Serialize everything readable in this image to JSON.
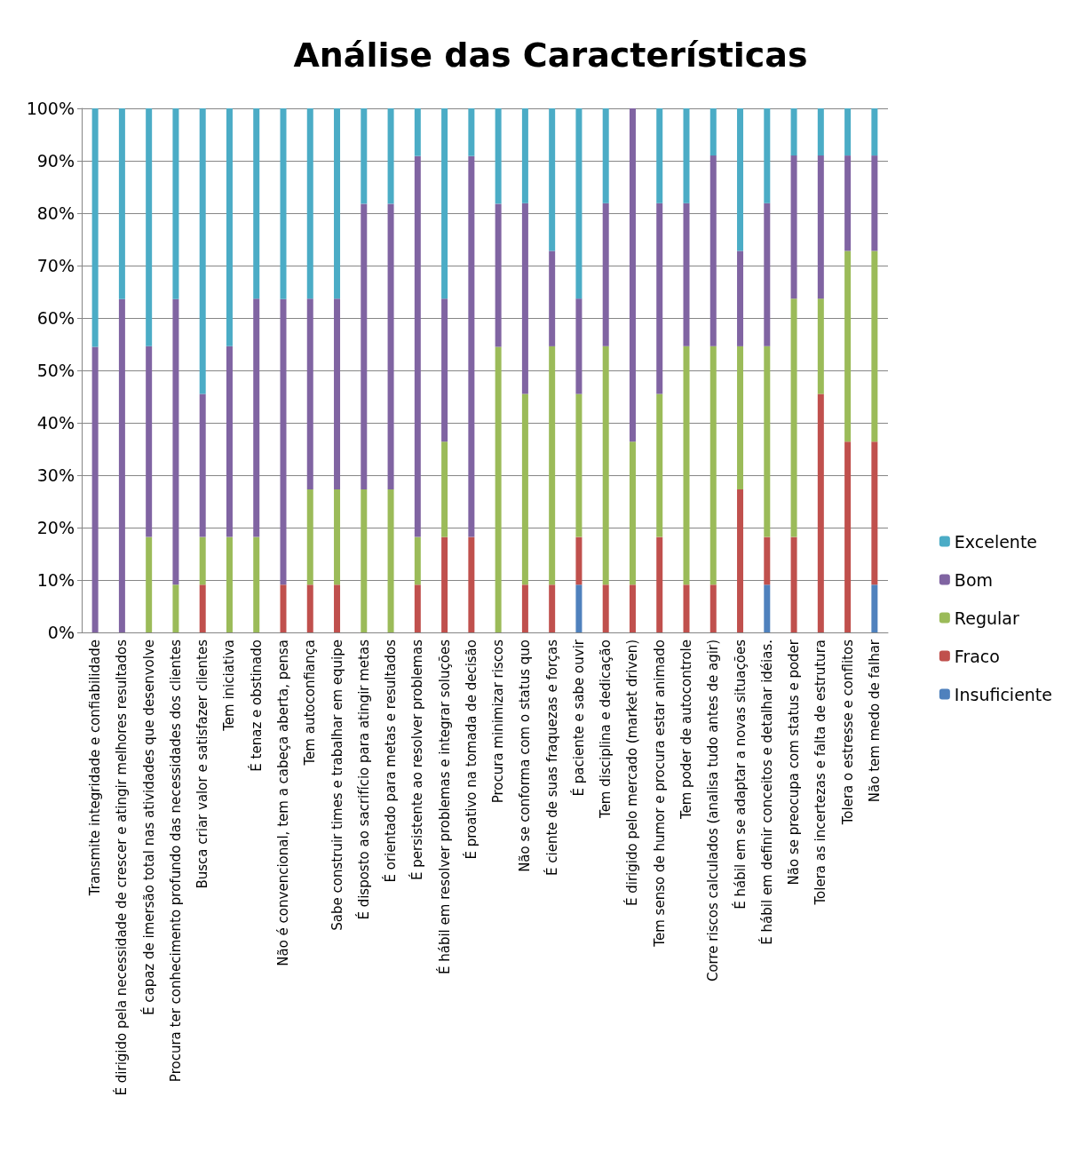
{
  "chart_data": {
    "type": "bar",
    "title": "Análise das Características",
    "stacked": true,
    "grid": "y",
    "legend": "right",
    "categories": [
      "Transmite integridade e confiabilidade",
      "É dirigido pela necessidade de crescer e atingir melhores resultados",
      "É capaz de imersão total nas atividades que desenvolve",
      "Procura ter conhecimento profundo das necessidades dos clientes",
      "Busca criar valor e satisfazer clientes",
      "Tem iniciativa",
      "É tenaz e obstinado",
      "Não é convencional, tem a cabeça aberta, pensa",
      "Tem autoconfiança",
      "Sabe construir times e trabalhar em equipe",
      "É disposto ao sacrifício para atingir metas",
      "É orientado para metas e resultados",
      "É persistente ao resolver problemas",
      "É hábil em resolver problemas e integrar soluções",
      "É proativo na tomada de decisão",
      "Procura minimizar riscos",
      "Não se conforma com o status quo",
      "É ciente de suas fraquezas e forças",
      "É paciente e sabe ouvir",
      "Tem disciplina e dedicação",
      "É dirigido pelo mercado (market driven)",
      "Tem senso de humor e procura estar animado",
      "Tem poder de autocontrole",
      "Corre riscos calculados (analisa tudo antes de agir)",
      "É hábil em se adaptar a novas situações",
      "É hábil em definir conceitos e detalhar idéias.",
      "Não se preocupa com status e poder",
      "Tolera as incertezas e falta de estrutura",
      "Tolera o estresse e conflitos",
      "Não tem medo de falhar"
    ],
    "series": [
      {
        "name": "Insuficiente",
        "color": "#4f81bd",
        "values": [
          0,
          0,
          0,
          0,
          0,
          0,
          0,
          0,
          0,
          0,
          0,
          0,
          0,
          0,
          0,
          0,
          0,
          0,
          9.1,
          0,
          0,
          0,
          0,
          0,
          0,
          9.1,
          0,
          0,
          0,
          9.1
        ]
      },
      {
        "name": "Fraco",
        "color": "#c0504d",
        "values": [
          0,
          0,
          0,
          0,
          9.1,
          0,
          0,
          9.1,
          9.1,
          9.1,
          0,
          0,
          9.1,
          18.2,
          18.2,
          0,
          9.1,
          9.1,
          9.1,
          9.1,
          9.1,
          18.2,
          9.1,
          9.1,
          27.3,
          9.1,
          18.2,
          45.5,
          36.4,
          27.3
        ]
      },
      {
        "name": "Regular",
        "color": "#9bbb59",
        "values": [
          0,
          0,
          18.2,
          9.1,
          9.1,
          18.2,
          18.2,
          0,
          18.2,
          18.2,
          27.3,
          27.3,
          9.1,
          18.2,
          0,
          54.5,
          36.4,
          45.5,
          27.3,
          45.5,
          27.3,
          27.3,
          45.5,
          45.5,
          27.3,
          36.4,
          45.5,
          18.2,
          36.4,
          36.4
        ]
      },
      {
        "name": "Bom",
        "color": "#8064a2",
        "values": [
          54.5,
          63.6,
          36.4,
          54.5,
          27.3,
          36.4,
          45.5,
          54.5,
          36.4,
          36.4,
          54.5,
          54.5,
          72.7,
          27.3,
          72.7,
          27.3,
          36.4,
          18.2,
          18.2,
          27.3,
          63.6,
          36.4,
          27.3,
          36.4,
          18.2,
          27.3,
          27.3,
          27.3,
          18.2,
          18.2
        ]
      },
      {
        "name": "Excelente",
        "color": "#4bacc6",
        "values": [
          45.5,
          36.4,
          45.4,
          36.4,
          54.5,
          45.4,
          36.3,
          36.4,
          36.3,
          36.3,
          18.2,
          18.2,
          9.1,
          36.3,
          9.1,
          18.2,
          18.1,
          27.2,
          36.3,
          18.1,
          0,
          18.1,
          18.1,
          9.0,
          27.2,
          18.1,
          9.0,
          9.0,
          9.0,
          9.0
        ]
      }
    ],
    "ylim": [
      0,
      100
    ],
    "yticks": [
      {
        "value": 0,
        "label": "0%"
      },
      {
        "value": 10,
        "label": "10%"
      },
      {
        "value": 20,
        "label": "20%"
      },
      {
        "value": 30,
        "label": "30%"
      },
      {
        "value": 40,
        "label": "40%"
      },
      {
        "value": 50,
        "label": "50%"
      },
      {
        "value": 60,
        "label": "60%"
      },
      {
        "value": 70,
        "label": "70%"
      },
      {
        "value": 80,
        "label": "80%"
      },
      {
        "value": 90,
        "label": "90%"
      },
      {
        "value": 100,
        "label": "100%"
      }
    ]
  }
}
